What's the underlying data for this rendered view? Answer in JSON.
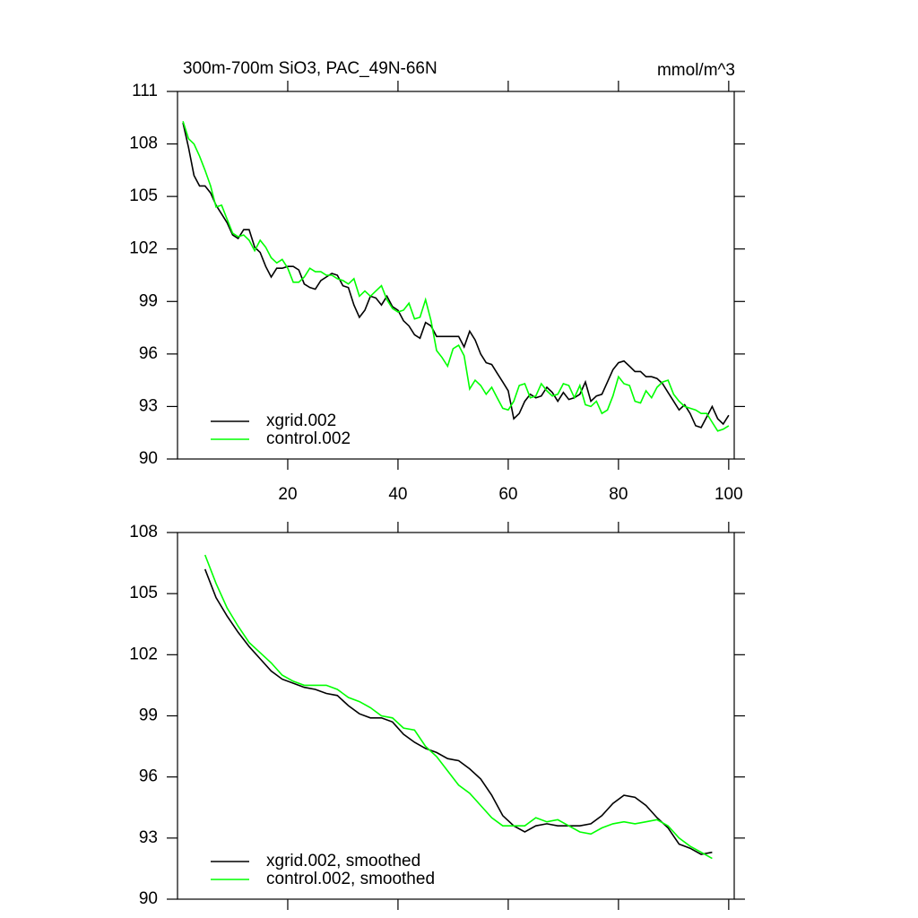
{
  "chart_data": [
    {
      "type": "line",
      "title": "300m-700m SiO3, PAC_49N-66N",
      "units": "mmol/m^3",
      "x": [
        1,
        2,
        3,
        4,
        5,
        6,
        7,
        8,
        9,
        10,
        11,
        12,
        13,
        14,
        15,
        16,
        17,
        18,
        19,
        20,
        21,
        22,
        23,
        24,
        25,
        26,
        27,
        28,
        29,
        30,
        31,
        32,
        33,
        34,
        35,
        36,
        37,
        38,
        39,
        40,
        41,
        42,
        43,
        44,
        45,
        46,
        47,
        48,
        49,
        50,
        51,
        52,
        53,
        54,
        55,
        56,
        57,
        58,
        59,
        60,
        61,
        62,
        63,
        64,
        65,
        66,
        67,
        68,
        69,
        70,
        71,
        72,
        73,
        74,
        75,
        76,
        77,
        78,
        79,
        80,
        81,
        82,
        83,
        84,
        85,
        86,
        87,
        88,
        89,
        90,
        91,
        92,
        93,
        94,
        95,
        96,
        97,
        98,
        99,
        100
      ],
      "series": [
        {
          "name": "xgrid.002",
          "color": "#000000",
          "values": [
            109.2,
            107.8,
            106.2,
            105.6,
            105.6,
            105.2,
            104.5,
            104.0,
            103.5,
            102.8,
            102.6,
            103.1,
            103.1,
            102.1,
            101.8,
            101.0,
            100.4,
            100.9,
            100.9,
            101.0,
            101.0,
            100.8,
            100.0,
            99.8,
            99.7,
            100.2,
            100.4,
            100.6,
            100.5,
            99.9,
            99.8,
            98.8,
            98.1,
            98.5,
            99.3,
            99.2,
            98.8,
            99.3,
            98.7,
            98.5,
            97.9,
            97.6,
            97.1,
            96.9,
            97.8,
            97.6,
            97.0,
            97.0,
            97.0,
            97.0,
            97.0,
            96.4,
            97.3,
            96.8,
            96.0,
            95.5,
            95.4,
            94.9,
            94.4,
            93.9,
            92.3,
            92.6,
            93.3,
            93.7,
            93.5,
            93.6,
            94.1,
            93.8,
            93.3,
            93.8,
            93.4,
            93.5,
            93.7,
            94.4,
            93.3,
            93.6,
            93.7,
            94.4,
            95.1,
            95.5,
            95.6,
            95.3,
            95.0,
            95.0,
            94.7,
            94.7,
            94.6,
            94.3,
            93.8,
            93.3,
            92.8,
            93.1,
            92.6,
            91.9,
            91.8,
            92.4,
            93.0,
            92.3,
            92.0,
            92.5
          ]
        },
        {
          "name": "control.002",
          "color": "#00ff00",
          "values": [
            109.3,
            108.3,
            108.0,
            107.3,
            106.5,
            105.6,
            104.4,
            104.5,
            103.7,
            102.9,
            102.7,
            102.8,
            102.5,
            101.9,
            102.5,
            102.1,
            101.5,
            101.2,
            101.4,
            100.9,
            100.1,
            100.1,
            100.4,
            100.9,
            100.7,
            100.7,
            100.5,
            100.5,
            100.3,
            100.2,
            100.0,
            100.3,
            99.3,
            99.6,
            99.3,
            99.6,
            99.9,
            99.1,
            98.6,
            98.4,
            98.5,
            98.9,
            98.0,
            98.1,
            99.1,
            97.9,
            96.2,
            95.8,
            95.3,
            96.3,
            96.5,
            95.9,
            94.0,
            94.5,
            94.2,
            93.7,
            94.1,
            93.5,
            92.9,
            92.8,
            93.3,
            94.2,
            94.3,
            93.5,
            93.6,
            94.3,
            93.9,
            93.6,
            93.7,
            94.3,
            94.2,
            93.5,
            94.2,
            93.1,
            93.0,
            93.3,
            92.6,
            92.8,
            93.6,
            94.7,
            94.3,
            94.2,
            93.3,
            93.2,
            93.9,
            93.5,
            94.1,
            94.4,
            94.5,
            93.7,
            93.3,
            93.0,
            92.9,
            92.8,
            92.6,
            92.6,
            92.1,
            91.6,
            91.7,
            91.9
          ]
        }
      ],
      "xlim": [
        0,
        101
      ],
      "xticks": [
        20,
        40,
        60,
        80,
        100
      ],
      "ylim": [
        90,
        111
      ],
      "yticks": [
        90,
        93,
        96,
        99,
        102,
        105,
        108,
        111
      ]
    },
    {
      "type": "line",
      "x": [
        5,
        7,
        9,
        11,
        13,
        15,
        17,
        19,
        21,
        23,
        25,
        27,
        29,
        31,
        33,
        35,
        37,
        39,
        41,
        43,
        45,
        47,
        49,
        51,
        53,
        55,
        57,
        59,
        61,
        63,
        65,
        67,
        69,
        71,
        73,
        75,
        77,
        79,
        81,
        83,
        85,
        87,
        89,
        91,
        93,
        95,
        97
      ],
      "series": [
        {
          "name": "xgrid.002, smoothed",
          "color": "#000000",
          "values": [
            106.2,
            104.8,
            103.9,
            103.1,
            102.4,
            101.8,
            101.2,
            100.8,
            100.6,
            100.4,
            100.3,
            100.1,
            100.0,
            99.5,
            99.1,
            98.9,
            98.9,
            98.7,
            98.1,
            97.7,
            97.4,
            97.2,
            96.9,
            96.8,
            96.4,
            95.9,
            95.1,
            94.1,
            93.6,
            93.3,
            93.6,
            93.7,
            93.6,
            93.6,
            93.6,
            93.7,
            94.1,
            94.7,
            95.1,
            95.0,
            94.6,
            94.0,
            93.5,
            92.7,
            92.5,
            92.2,
            92.3
          ]
        },
        {
          "name": "control.002, smoothed",
          "color": "#00ff00",
          "values": [
            106.9,
            105.5,
            104.3,
            103.4,
            102.6,
            102.1,
            101.6,
            101.0,
            100.7,
            100.5,
            100.5,
            100.5,
            100.3,
            99.9,
            99.7,
            99.4,
            99.0,
            98.9,
            98.4,
            98.3,
            97.5,
            97.0,
            96.3,
            95.6,
            95.2,
            94.6,
            94.0,
            93.6,
            93.6,
            93.6,
            94.0,
            93.8,
            93.9,
            93.6,
            93.3,
            93.2,
            93.5,
            93.7,
            93.8,
            93.7,
            93.8,
            93.9,
            93.6,
            93.0,
            92.6,
            92.3,
            92.0
          ]
        }
      ],
      "xlim": [
        0,
        101
      ],
      "ylim": [
        90,
        108
      ],
      "yticks": [
        90,
        93,
        96,
        99,
        102,
        105,
        108
      ]
    }
  ]
}
